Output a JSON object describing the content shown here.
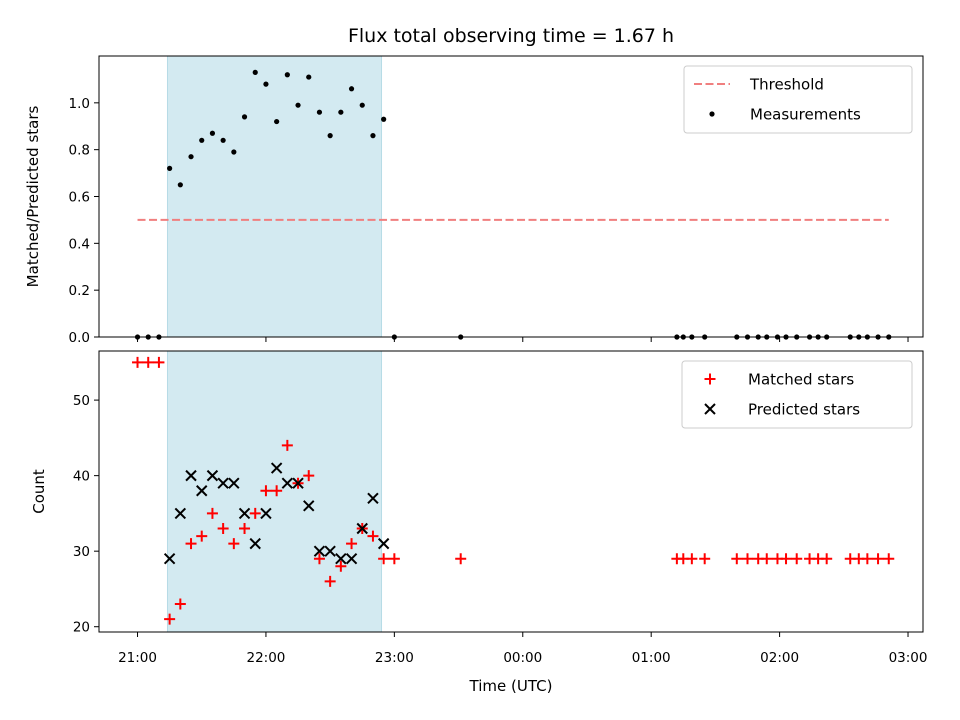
{
  "chart_data": [
    {
      "type": "scatter",
      "title": "Flux total observing time = 1.67 h",
      "xlabel": "",
      "ylabel": "Matched/Predicted stars",
      "xlim": [
        "2024-01-01T20:42",
        "2024-01-02T03:07"
      ],
      "ylim": [
        0,
        1.2
      ],
      "yticks": [
        "0.0",
        "0.2",
        "0.4",
        "0.6",
        "0.8",
        "1.0"
      ],
      "ytick_values": [
        0,
        0.2,
        0.4,
        0.6,
        0.8,
        1.0
      ],
      "shaded_span": [
        "2024-01-01T21:14",
        "2024-01-01T22:54"
      ],
      "shaded_color": "#d3eaf1",
      "legend": "top-right",
      "legend_entries": [
        {
          "label": "Threshold",
          "style": "dashed-line",
          "color": "#f07f7f"
        },
        {
          "label": "Measurements",
          "style": "dot",
          "color": "#000000"
        }
      ],
      "threshold": {
        "value": 0.5,
        "x_start": "2024-01-01T21:00",
        "x_end": "2024-01-02T02:51",
        "color": "#f07f7f"
      },
      "series": [
        {
          "name": "Measurements",
          "color": "#000000",
          "x": [
            "2024-01-01T21:00",
            "2024-01-01T21:05",
            "2024-01-01T21:10",
            "2024-01-01T21:15",
            "2024-01-01T21:20",
            "2024-01-01T21:25",
            "2024-01-01T21:30",
            "2024-01-01T21:35",
            "2024-01-01T21:40",
            "2024-01-01T21:45",
            "2024-01-01T21:50",
            "2024-01-01T21:55",
            "2024-01-01T22:00",
            "2024-01-01T22:05",
            "2024-01-01T22:10",
            "2024-01-01T22:15",
            "2024-01-01T22:20",
            "2024-01-01T22:25",
            "2024-01-01T22:30",
            "2024-01-01T22:35",
            "2024-01-01T22:40",
            "2024-01-01T22:45",
            "2024-01-01T22:50",
            "2024-01-01T22:55",
            "2024-01-01T23:00",
            "2024-01-01T23:31",
            "2024-01-02T01:12",
            "2024-01-02T01:15",
            "2024-01-02T01:19",
            "2024-01-02T01:25",
            "2024-01-02T01:40",
            "2024-01-02T01:45",
            "2024-01-02T01:50",
            "2024-01-02T01:54",
            "2024-01-02T01:59",
            "2024-01-02T02:03",
            "2024-01-02T02:08",
            "2024-01-02T02:14",
            "2024-01-02T02:18",
            "2024-01-02T02:22",
            "2024-01-02T02:33",
            "2024-01-02T02:37",
            "2024-01-02T02:41",
            "2024-01-02T02:46",
            "2024-01-02T02:51"
          ],
          "y": [
            0,
            0,
            0,
            0.72,
            0.65,
            0.77,
            0.84,
            0.87,
            0.84,
            0.79,
            0.94,
            1.13,
            1.08,
            0.92,
            1.12,
            0.99,
            1.11,
            0.96,
            0.86,
            0.96,
            1.06,
            0.99,
            0.86,
            0.93,
            0,
            0,
            0,
            0,
            0,
            0,
            0,
            0,
            0,
            0,
            0,
            0,
            0,
            0,
            0,
            0,
            0,
            0,
            0,
            0,
            0
          ]
        }
      ]
    },
    {
      "type": "scatter",
      "title": "",
      "xlabel": "Time (UTC)",
      "ylabel": "Count",
      "xlim": [
        "2024-01-01T20:42",
        "2024-01-02T03:07"
      ],
      "ylim": [
        19.3,
        56.5
      ],
      "yticks": [
        "20",
        "30",
        "40",
        "50"
      ],
      "ytick_values": [
        20,
        30,
        40,
        50
      ],
      "xticks": [
        "21:00",
        "22:00",
        "23:00",
        "00:00",
        "01:00",
        "02:00",
        "03:00"
      ],
      "xtick_values": [
        "2024-01-01T21:00",
        "2024-01-01T22:00",
        "2024-01-01T23:00",
        "2024-01-02T00:00",
        "2024-01-02T01:00",
        "2024-01-02T02:00",
        "2024-01-02T03:00"
      ],
      "shaded_span": [
        "2024-01-01T21:14",
        "2024-01-01T22:54"
      ],
      "shaded_color": "#d3eaf1",
      "legend": "top-right",
      "legend_entries": [
        {
          "label": "Matched stars",
          "marker": "+",
          "color": "#ff0000"
        },
        {
          "label": "Predicted stars",
          "marker": "x",
          "color": "#000000"
        }
      ],
      "series": [
        {
          "name": "Matched stars",
          "marker": "+",
          "color": "#ff0000",
          "x": [
            "2024-01-01T21:00",
            "2024-01-01T21:05",
            "2024-01-01T21:10",
            "2024-01-01T21:15",
            "2024-01-01T21:20",
            "2024-01-01T21:25",
            "2024-01-01T21:30",
            "2024-01-01T21:35",
            "2024-01-01T21:40",
            "2024-01-01T21:45",
            "2024-01-01T21:50",
            "2024-01-01T21:55",
            "2024-01-01T22:00",
            "2024-01-01T22:05",
            "2024-01-01T22:10",
            "2024-01-01T22:15",
            "2024-01-01T22:20",
            "2024-01-01T22:25",
            "2024-01-01T22:30",
            "2024-01-01T22:35",
            "2024-01-01T22:40",
            "2024-01-01T22:45",
            "2024-01-01T22:50",
            "2024-01-01T22:55",
            "2024-01-01T23:00",
            "2024-01-01T23:31",
            "2024-01-02T01:12",
            "2024-01-02T01:15",
            "2024-01-02T01:19",
            "2024-01-02T01:25",
            "2024-01-02T01:40",
            "2024-01-02T01:45",
            "2024-01-02T01:50",
            "2024-01-02T01:54",
            "2024-01-02T01:59",
            "2024-01-02T02:03",
            "2024-01-02T02:08",
            "2024-01-02T02:14",
            "2024-01-02T02:18",
            "2024-01-02T02:22",
            "2024-01-02T02:33",
            "2024-01-02T02:37",
            "2024-01-02T02:41",
            "2024-01-02T02:46",
            "2024-01-02T02:51"
          ],
          "y": [
            55,
            55,
            55,
            21,
            23,
            31,
            32,
            35,
            33,
            31,
            33,
            35,
            38,
            38,
            44,
            39,
            40,
            29,
            26,
            28,
            31,
            33,
            32,
            29,
            29,
            29,
            29,
            29,
            29,
            29,
            29,
            29,
            29,
            29,
            29,
            29,
            29,
            29,
            29,
            29,
            29,
            29,
            29,
            29,
            29
          ]
        },
        {
          "name": "Predicted stars",
          "marker": "x",
          "color": "#000000",
          "x": [
            "2024-01-01T21:15",
            "2024-01-01T21:20",
            "2024-01-01T21:25",
            "2024-01-01T21:30",
            "2024-01-01T21:35",
            "2024-01-01T21:40",
            "2024-01-01T21:45",
            "2024-01-01T21:50",
            "2024-01-01T21:55",
            "2024-01-01T22:00",
            "2024-01-01T22:05",
            "2024-01-01T22:10",
            "2024-01-01T22:15",
            "2024-01-01T22:20",
            "2024-01-01T22:25",
            "2024-01-01T22:30",
            "2024-01-01T22:35",
            "2024-01-01T22:40",
            "2024-01-01T22:45",
            "2024-01-01T22:50",
            "2024-01-01T22:55"
          ],
          "y": [
            29,
            35,
            40,
            38,
            40,
            39,
            39,
            35,
            31,
            35,
            41,
            39,
            39,
            36,
            30,
            30,
            29,
            29,
            33,
            37,
            31
          ]
        }
      ]
    }
  ]
}
